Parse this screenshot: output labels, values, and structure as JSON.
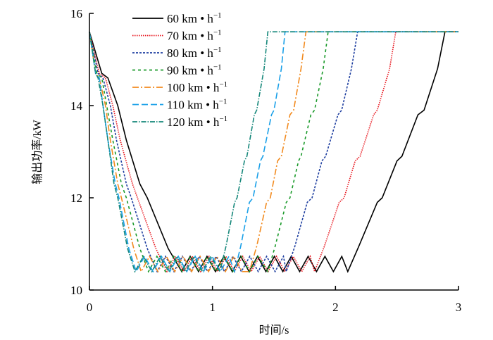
{
  "chart_data": {
    "type": "line",
    "xlabel": "时间/s",
    "ylabel": "输出功率/kW",
    "xlim": [
      0,
      3
    ],
    "ylim": [
      10,
      16
    ],
    "xticks": [
      "0",
      "1",
      "2",
      "3"
    ],
    "yticks": [
      "10",
      "12",
      "14",
      "16"
    ],
    "grid": false,
    "legend_position": "top-left",
    "oscillation": {
      "period": 0.137,
      "min": 10.4,
      "max": 10.73
    },
    "series": [
      {
        "name": "60 km • h",
        "sup": "−1",
        "color": "#000000",
        "dash": "solid",
        "descent": [
          [
            0,
            15.6
          ],
          [
            0.1,
            14.7
          ],
          [
            0.15,
            14.6
          ],
          [
            0.23,
            14.0
          ],
          [
            0.3,
            13.25
          ],
          [
            0.41,
            12.3
          ],
          [
            0.47,
            12.0
          ],
          [
            0.64,
            10.9
          ],
          [
            0.75,
            10.4
          ]
        ],
        "rise": [
          [
            2.1,
            10.4
          ],
          [
            2.19,
            10.95
          ],
          [
            2.34,
            11.9
          ],
          [
            2.38,
            12.0
          ],
          [
            2.5,
            12.8
          ],
          [
            2.54,
            12.9
          ],
          [
            2.67,
            13.8
          ],
          [
            2.72,
            13.9
          ],
          [
            2.83,
            14.8
          ],
          [
            2.89,
            15.6
          ],
          [
            3,
            15.6
          ]
        ]
      },
      {
        "name": "70 km • h",
        "sup": "−1",
        "color": "#e8141c",
        "dash": "dotted",
        "descent": [
          [
            0,
            15.6
          ],
          [
            0.08,
            14.7
          ],
          [
            0.13,
            14.6
          ],
          [
            0.19,
            14.0
          ],
          [
            0.25,
            13.25
          ],
          [
            0.35,
            12.3
          ],
          [
            0.39,
            12.0
          ],
          [
            0.54,
            10.9
          ],
          [
            0.63,
            10.4
          ]
        ],
        "rise": [
          [
            1.83,
            10.4
          ],
          [
            1.91,
            10.95
          ],
          [
            2.03,
            11.9
          ],
          [
            2.07,
            12.0
          ],
          [
            2.16,
            12.8
          ],
          [
            2.2,
            12.9
          ],
          [
            2.31,
            13.8
          ],
          [
            2.34,
            13.9
          ],
          [
            2.44,
            14.8
          ],
          [
            2.49,
            15.6
          ],
          [
            3,
            15.6
          ]
        ]
      },
      {
        "name": "80 km • h",
        "sup": "−1",
        "color": "#1f3fa0",
        "dash": "short-dash",
        "descent": [
          [
            0,
            15.6
          ],
          [
            0.07,
            14.7
          ],
          [
            0.11,
            14.6
          ],
          [
            0.17,
            14.0
          ],
          [
            0.22,
            13.25
          ],
          [
            0.3,
            12.3
          ],
          [
            0.34,
            12.0
          ],
          [
            0.47,
            10.9
          ],
          [
            0.55,
            10.4
          ]
        ],
        "rise": [
          [
            1.6,
            10.4
          ],
          [
            1.67,
            10.95
          ],
          [
            1.77,
            11.9
          ],
          [
            1.81,
            12.0
          ],
          [
            1.89,
            12.8
          ],
          [
            1.92,
            12.9
          ],
          [
            2.02,
            13.8
          ],
          [
            2.05,
            13.9
          ],
          [
            2.13,
            14.8
          ],
          [
            2.18,
            15.6
          ],
          [
            3,
            15.6
          ]
        ]
      },
      {
        "name": "90 km • h",
        "sup": "−1",
        "color": "#1a9a2a",
        "dash": "dashed",
        "descent": [
          [
            0,
            15.6
          ],
          [
            0.06,
            14.7
          ],
          [
            0.1,
            14.6
          ],
          [
            0.14,
            14.0
          ],
          [
            0.19,
            13.25
          ],
          [
            0.26,
            12.3
          ],
          [
            0.3,
            12.0
          ],
          [
            0.41,
            10.9
          ],
          [
            0.48,
            10.4
          ]
        ],
        "rise": [
          [
            1.45,
            10.4
          ],
          [
            1.51,
            10.95
          ],
          [
            1.6,
            11.9
          ],
          [
            1.63,
            12.0
          ],
          [
            1.7,
            12.8
          ],
          [
            1.72,
            12.9
          ],
          [
            1.8,
            13.8
          ],
          [
            1.83,
            13.9
          ],
          [
            1.9,
            14.8
          ],
          [
            1.94,
            15.6
          ],
          [
            3,
            15.6
          ]
        ]
      },
      {
        "name": "100 km • h",
        "sup": "−1",
        "color": "#f28a1e",
        "dash": "long-dash-dot",
        "descent": [
          [
            0,
            15.6
          ],
          [
            0.05,
            14.7
          ],
          [
            0.08,
            14.6
          ],
          [
            0.13,
            14.0
          ],
          [
            0.17,
            13.25
          ],
          [
            0.23,
            12.3
          ],
          [
            0.26,
            12.0
          ],
          [
            0.36,
            10.9
          ],
          [
            0.42,
            10.4
          ]
        ],
        "rise": [
          [
            1.3,
            10.4
          ],
          [
            1.36,
            10.95
          ],
          [
            1.44,
            11.9
          ],
          [
            1.47,
            12.0
          ],
          [
            1.53,
            12.8
          ],
          [
            1.56,
            12.9
          ],
          [
            1.63,
            13.8
          ],
          [
            1.66,
            13.9
          ],
          [
            1.72,
            14.8
          ],
          [
            1.76,
            15.6
          ],
          [
            3,
            15.6
          ]
        ]
      },
      {
        "name": "110 km • h",
        "sup": "−1",
        "color": "#1aa0e8",
        "dash": "long-dash",
        "descent": [
          [
            0,
            15.6
          ],
          [
            0.05,
            14.7
          ],
          [
            0.08,
            14.6
          ],
          [
            0.11,
            14.0
          ],
          [
            0.15,
            13.25
          ],
          [
            0.21,
            12.3
          ],
          [
            0.24,
            12.0
          ],
          [
            0.32,
            10.9
          ],
          [
            0.38,
            10.4
          ]
        ],
        "rise": [
          [
            1.18,
            10.4
          ],
          [
            1.23,
            10.95
          ],
          [
            1.3,
            11.9
          ],
          [
            1.33,
            12.0
          ],
          [
            1.39,
            12.8
          ],
          [
            1.41,
            12.9
          ],
          [
            1.48,
            13.8
          ],
          [
            1.5,
            13.9
          ],
          [
            1.56,
            14.8
          ],
          [
            1.59,
            15.6
          ],
          [
            3,
            15.6
          ]
        ]
      },
      {
        "name": "120 km • h",
        "sup": "−1",
        "color": "#15877a",
        "dash": "dash-dot",
        "descent": [
          [
            0,
            15.6
          ],
          [
            0.05,
            14.7
          ],
          [
            0.07,
            14.6
          ],
          [
            0.11,
            14.0
          ],
          [
            0.15,
            13.25
          ],
          [
            0.2,
            12.3
          ],
          [
            0.23,
            12.0
          ],
          [
            0.31,
            10.9
          ],
          [
            0.37,
            10.4
          ]
        ],
        "rise": [
          [
            1.06,
            10.4
          ],
          [
            1.11,
            10.95
          ],
          [
            1.18,
            11.9
          ],
          [
            1.2,
            12.0
          ],
          [
            1.26,
            12.8
          ],
          [
            1.28,
            12.9
          ],
          [
            1.34,
            13.8
          ],
          [
            1.36,
            13.9
          ],
          [
            1.42,
            14.8
          ],
          [
            1.45,
            15.6
          ],
          [
            3,
            15.6
          ]
        ]
      }
    ]
  }
}
